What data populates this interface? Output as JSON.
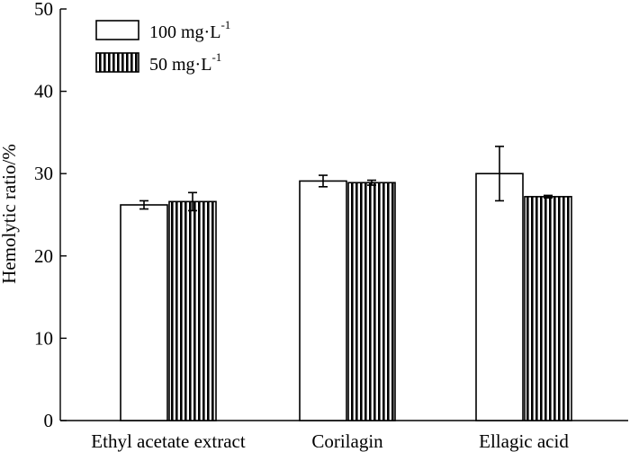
{
  "chart_data": {
    "type": "bar",
    "title": "",
    "xlabel": "",
    "ylabel": "Hemolytic ratio/%",
    "ylim": [
      0,
      50
    ],
    "yticks": [
      0,
      10,
      20,
      30,
      40,
      50
    ],
    "categories": [
      "Ethyl acetate extract",
      "Corilagin",
      "Ellagic acid"
    ],
    "series": [
      {
        "name": "100 mg·L",
        "unit_exponent": "-1",
        "pattern": "open",
        "values": [
          26.2,
          29.1,
          30.0
        ],
        "errors": [
          0.5,
          0.7,
          3.3
        ]
      },
      {
        "name": "50 mg·L",
        "unit_exponent": "-1",
        "pattern": "vertical-stripes",
        "values": [
          26.6,
          28.9,
          27.2
        ],
        "errors": [
          1.1,
          0.3,
          0.15
        ]
      }
    ],
    "legend_position": "top-left"
  }
}
